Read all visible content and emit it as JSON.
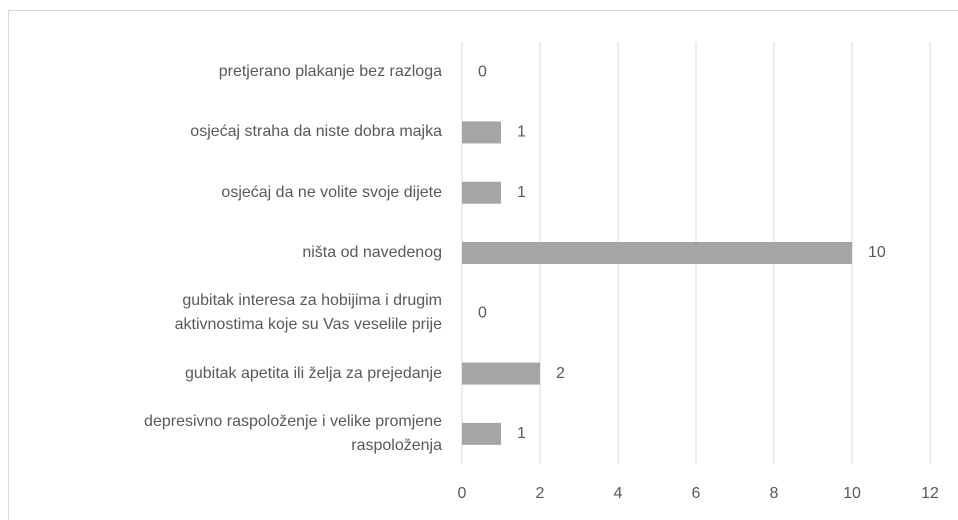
{
  "chart_data": {
    "type": "barh",
    "categories": [
      "pretjerano plakanje bez razloga",
      "osjećaj straha da niste dobra majka",
      "osjećaj da ne volite svoje dijete",
      "ništa od navedenog",
      "gubitak interesa za hobijima i drugim\naktivnostima koje su Vas veselile prije",
      "gubitak apetita ili želja za prejedanje",
      "depresivno raspoloženje i velike promjene\nraspoloženja"
    ],
    "values": [
      0,
      1,
      1,
      10,
      0,
      2,
      1
    ],
    "color": "#a5a5a5",
    "xlim": [
      0,
      12
    ],
    "xticks": [
      0,
      2,
      4,
      6,
      8,
      10,
      12
    ],
    "grid": true
  }
}
